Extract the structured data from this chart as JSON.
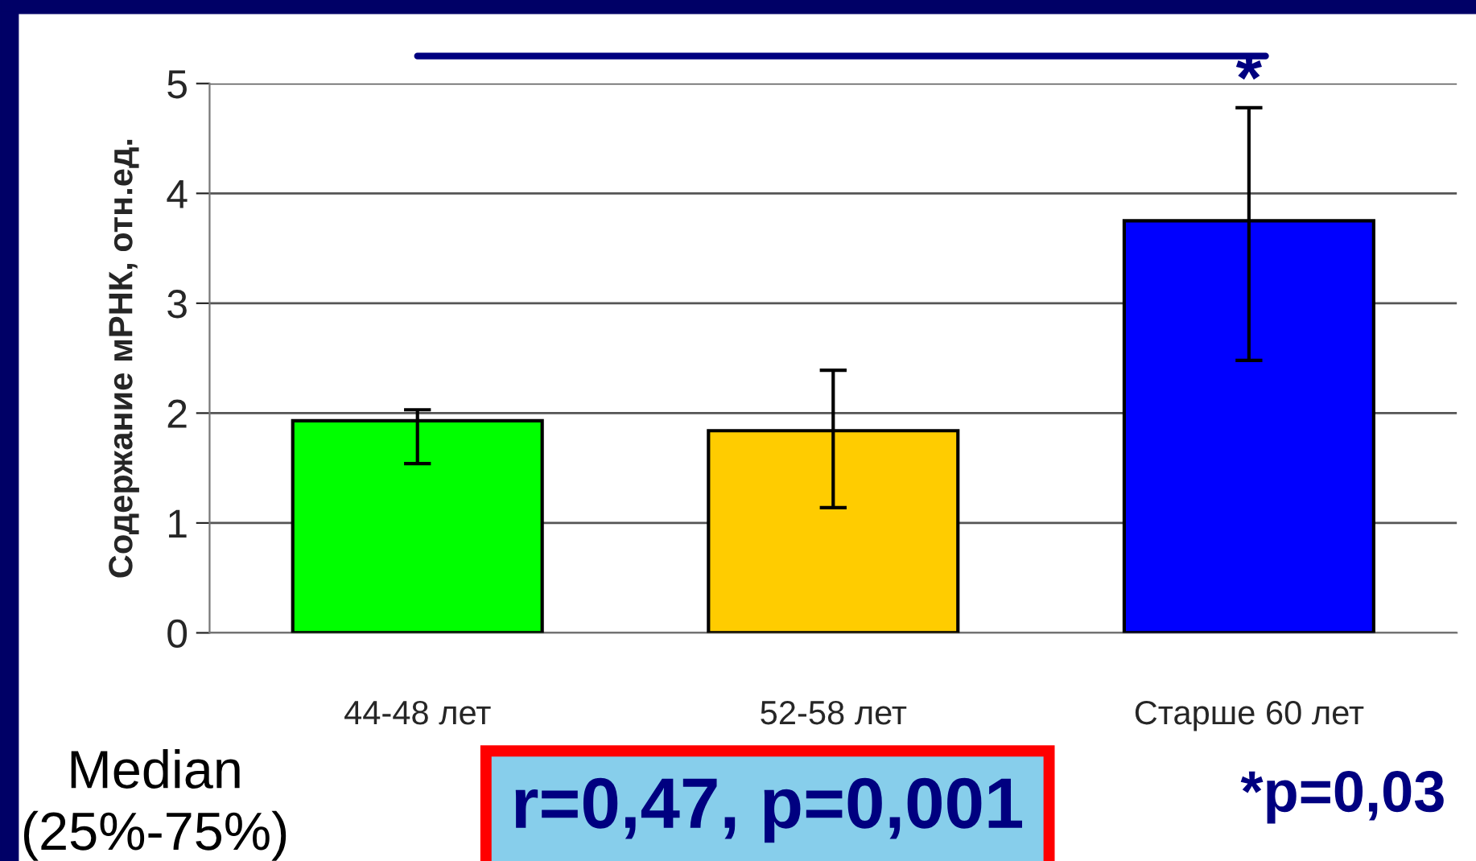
{
  "chart_data": {
    "type": "bar",
    "ylabel": "Содержание мРНК, отн.ед.",
    "categories": [
      "44-48 лет",
      "52-58 лет",
      "Старше 60 лет"
    ],
    "values": [
      1.93,
      1.84,
      3.75
    ],
    "colors": [
      "#00ff00",
      "#ffcc00",
      "#0000ff"
    ],
    "errors": [
      [
        1.54,
        2.03
      ],
      [
        1.14,
        2.39
      ],
      [
        2.48,
        4.78
      ]
    ],
    "ylim": [
      0,
      5
    ],
    "yticks": [
      0,
      1,
      2,
      3,
      4,
      5
    ],
    "grid": "y",
    "annotations": [
      "*",
      "Median\n(25%-75%)",
      "r=0,47, p=0,001",
      "*p=0,03"
    ]
  }
}
